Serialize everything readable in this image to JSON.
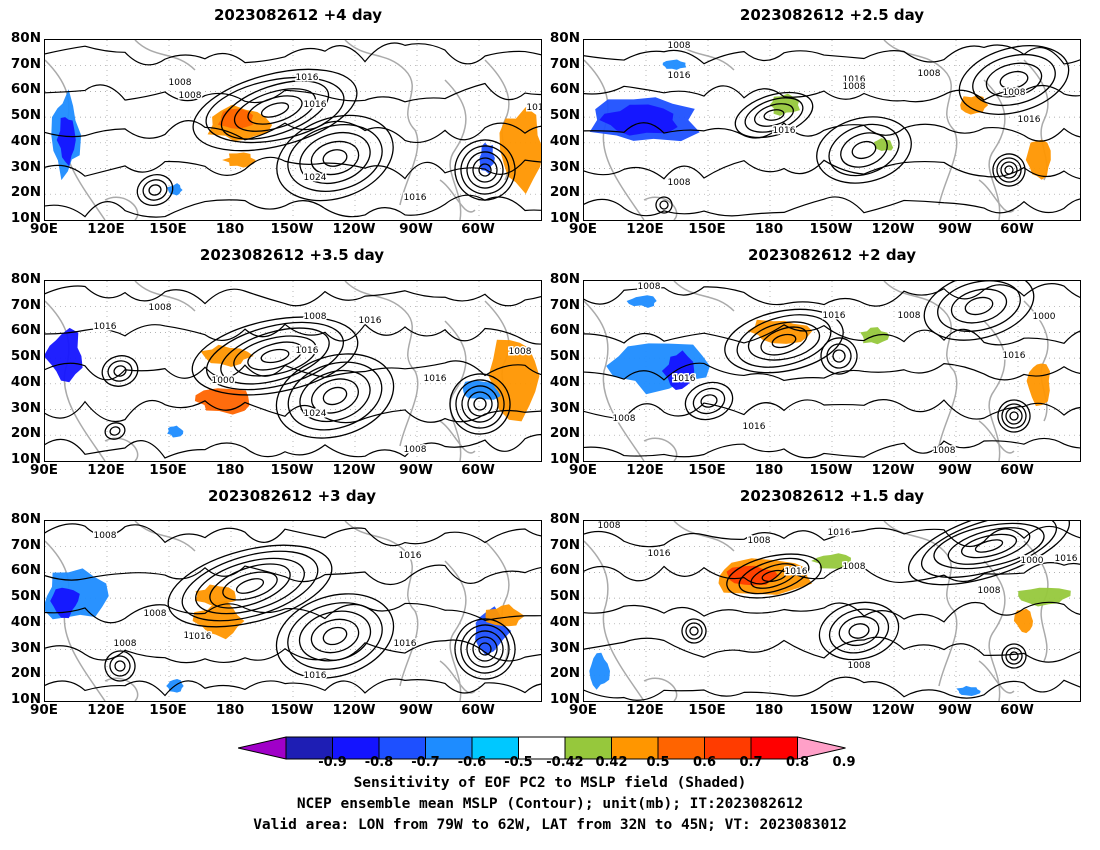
{
  "panels": [
    {
      "title": "2023082612  +4 day",
      "contour_labels": [
        "1008",
        "1016",
        "1008",
        "1016",
        "1024",
        "1016",
        "101"
      ]
    },
    {
      "title": "2023082612  +2.5 day",
      "contour_labels": [
        "1008",
        "1016",
        "1016",
        "1008",
        "1008",
        "1016",
        "1008",
        "1016",
        "1008"
      ]
    },
    {
      "title": "2023082612  +3.5 day",
      "contour_labels": [
        "1008",
        "1016",
        "1008",
        "1016",
        "1016",
        "1000",
        "1008",
        "1024",
        "1008",
        "1016"
      ]
    },
    {
      "title": "2023082612  +2 day",
      "contour_labels": [
        "1008",
        "1016",
        "1008",
        "1016",
        "1000",
        "1016",
        "1008",
        "1016",
        "1008"
      ]
    },
    {
      "title": "2023082612  +3 day",
      "contour_labels": [
        "1008",
        "1016",
        "1008",
        "1016",
        "1008",
        "1016",
        "1016",
        "1016"
      ]
    },
    {
      "title": "2023082612  +1.5 day",
      "contour_labels": [
        "1008",
        "1016",
        "1008",
        "1016",
        "1016",
        "1008",
        "1000",
        "1008",
        "1016",
        "1008"
      ]
    }
  ],
  "lat_labels": [
    "80N",
    "70N",
    "60N",
    "50N",
    "40N",
    "30N",
    "20N",
    "10N"
  ],
  "lon_labels": [
    "90E",
    "120E",
    "150E",
    "180",
    "150W",
    "120W",
    "90W",
    "60W"
  ],
  "colorbar": {
    "labels": [
      "-0.9",
      "-0.8",
      "-0.7",
      "-0.6",
      "-0.5",
      "-0.42",
      "0.42",
      "0.5",
      "0.6",
      "0.7",
      "0.8",
      "0.9"
    ],
    "colors": [
      "#a000c8",
      "#1e1eb4",
      "#1414ff",
      "#1e50ff",
      "#1e8cff",
      "#00c8ff",
      "#ffffff",
      "#96c83c",
      "#ff9600",
      "#ff6400",
      "#ff3c00",
      "#ff0000",
      "#ffa0c8"
    ]
  },
  "footer": {
    "line1": "Sensitivity of EOF PC2 to MSLP field (Shaded)",
    "line2": "NCEP ensemble mean MSLP (Contour); unit(mb); IT:2023082612",
    "line3": "Valid area: LON from 79W to 62W, LAT from 32N to 45N; VT: 2023083012"
  }
}
